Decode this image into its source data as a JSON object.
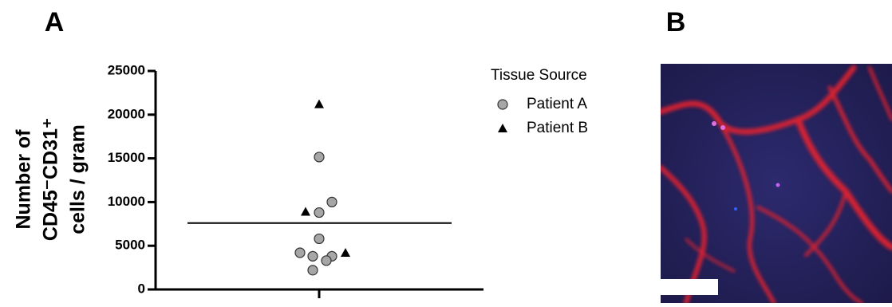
{
  "chart_data": {
    "type": "scatter",
    "panel_label": "A",
    "y_label_lines": [
      "Number of",
      "CD45⁻CD31⁺",
      "cells / gram"
    ],
    "ylim": [
      0,
      25000
    ],
    "yticks": [
      0,
      5000,
      10000,
      15000,
      20000,
      25000
    ],
    "legend_title": "Tissue Source",
    "series": [
      {
        "name": "Patient A",
        "marker": "circle",
        "color": "#a6a6a6",
        "values": [
          15150,
          10000,
          8800,
          5800,
          4200,
          3800,
          3800,
          3300,
          2200
        ]
      },
      {
        "name": "Patient B",
        "marker": "triangle",
        "color": "#000000",
        "values": [
          21200,
          8900,
          4200
        ]
      }
    ],
    "mean_line": 7600
  },
  "image_panel": {
    "panel_label": "B"
  }
}
